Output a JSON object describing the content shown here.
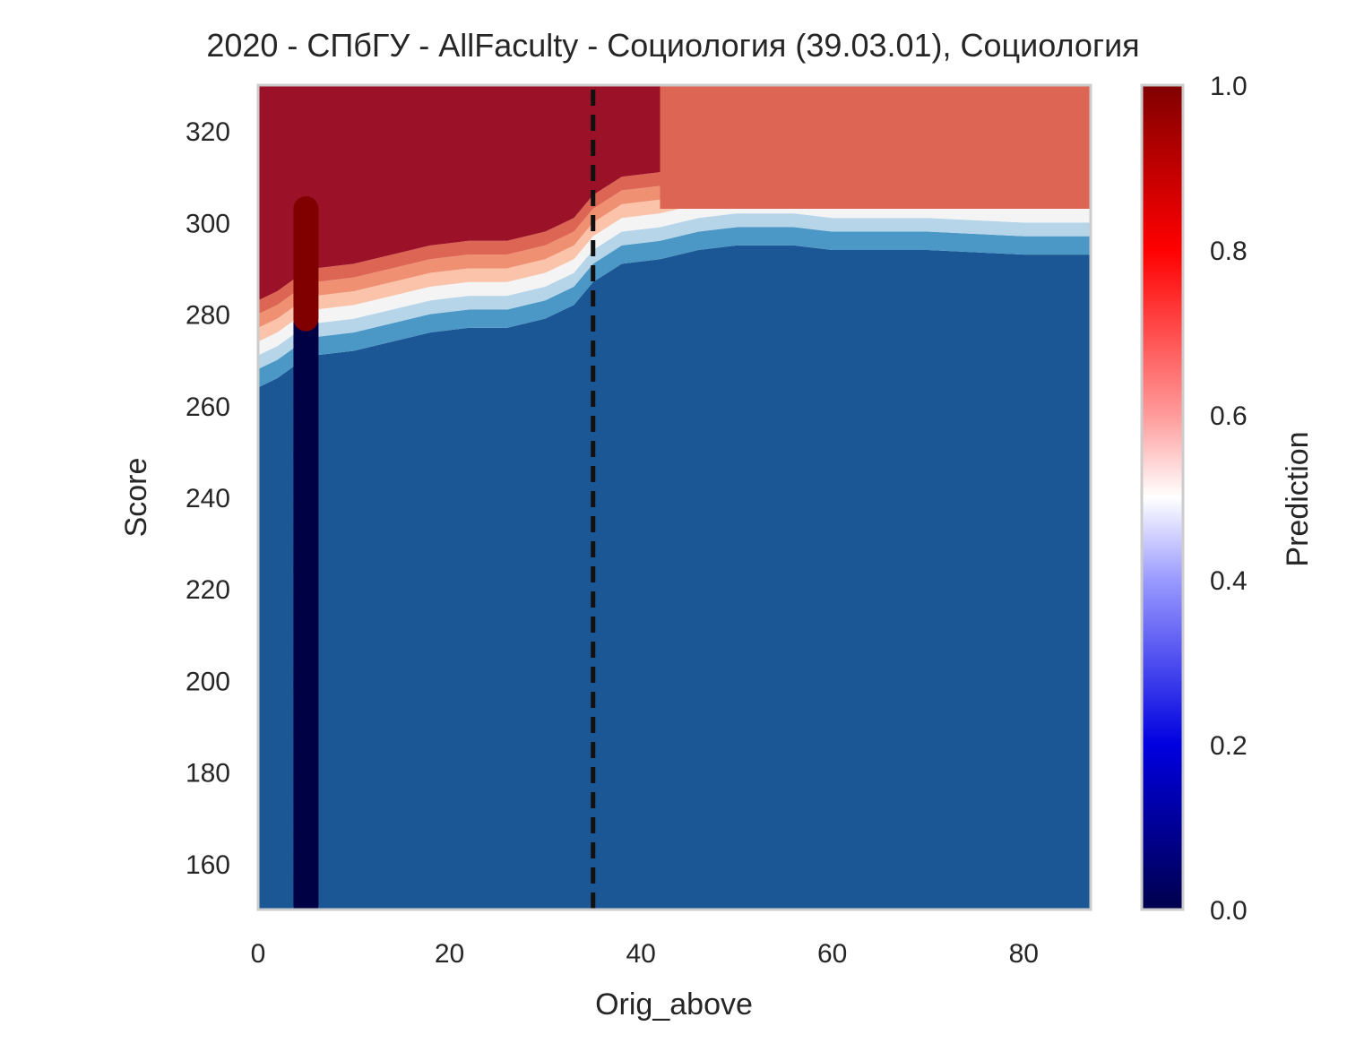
{
  "chart_data": {
    "type": "heatmap",
    "title": "2020 - СПбГУ - AllFaculty - Социология (39.03.01), Социология",
    "xlabel": "Orig_above",
    "ylabel": "Score",
    "colorbar_label": "Prediction",
    "xlim": [
      0,
      87
    ],
    "ylim": [
      150,
      330
    ],
    "x_ticks": [
      0,
      20,
      40,
      60,
      80
    ],
    "y_ticks": [
      160,
      180,
      200,
      220,
      240,
      260,
      280,
      300,
      320
    ],
    "colorbar_ticks": [
      0.0,
      0.2,
      0.4,
      0.6,
      0.8,
      1.0
    ],
    "colorbar_tick_labels": [
      "0.0",
      "0.2",
      "0.4",
      "0.6",
      "0.8",
      "1.0"
    ],
    "contour_levels": [
      {
        "range": [
          0.0,
          0.125
        ],
        "color": "#1b5794"
      },
      {
        "range": [
          0.125,
          0.25
        ],
        "color": "#4b98c7"
      },
      {
        "range": [
          0.25,
          0.375
        ],
        "color": "#b6d5e9"
      },
      {
        "range": [
          0.375,
          0.5
        ],
        "color": "#f4f4f4"
      },
      {
        "range": [
          0.5,
          0.625
        ],
        "color": "#fac3aa"
      },
      {
        "range": [
          0.625,
          0.75
        ],
        "color": "#f09072"
      },
      {
        "range": [
          0.75,
          0.875
        ],
        "color": "#dc6653"
      },
      {
        "range": [
          0.875,
          1.0
        ],
        "color": "#9b1128"
      }
    ],
    "decision_boundary": [
      {
        "x": 0,
        "score": 274
      },
      {
        "x": 2,
        "score": 276
      },
      {
        "x": 4,
        "score": 279
      },
      {
        "x": 6,
        "score": 281
      },
      {
        "x": 10,
        "score": 282
      },
      {
        "x": 14,
        "score": 284
      },
      {
        "x": 18,
        "score": 286
      },
      {
        "x": 22,
        "score": 287
      },
      {
        "x": 26,
        "score": 287
      },
      {
        "x": 30,
        "score": 289
      },
      {
        "x": 33,
        "score": 292
      },
      {
        "x": 35,
        "score": 297
      },
      {
        "x": 38,
        "score": 301
      },
      {
        "x": 42,
        "score": 302
      },
      {
        "x": 46,
        "score": 304
      },
      {
        "x": 50,
        "score": 305
      },
      {
        "x": 56,
        "score": 305
      },
      {
        "x": 60,
        "score": 304
      },
      {
        "x": 70,
        "score": 304
      },
      {
        "x": 80,
        "score": 303
      },
      {
        "x": 87,
        "score": 303
      }
    ],
    "top_right_region": {
      "x_from": 42,
      "score_from": 303,
      "level_color": "#dc6653"
    },
    "threshold_line": {
      "x": 35,
      "style": "dashed",
      "color": "#111111"
    },
    "scatter": {
      "x": 5,
      "high_range": [
        279,
        303
      ],
      "low_range": [
        151,
        278
      ],
      "high_color": "#800000",
      "low_color": "#000044"
    },
    "colormap": [
      [
        0.0,
        "#00004c"
      ],
      [
        0.2,
        "#0000e0"
      ],
      [
        0.4,
        "#9a9aff"
      ],
      [
        0.5,
        "#ffffff"
      ],
      [
        0.6,
        "#ff9a9a"
      ],
      [
        0.8,
        "#ff0000"
      ],
      [
        1.0,
        "#800000"
      ]
    ]
  }
}
